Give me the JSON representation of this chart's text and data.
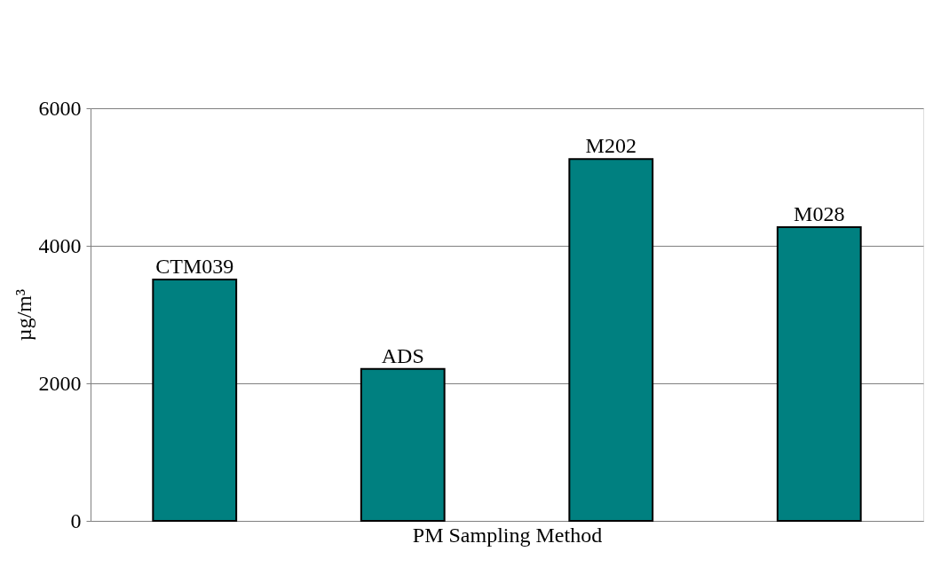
{
  "chart_data": {
    "type": "bar",
    "xlabel": "PM Sampling Method",
    "ylabel": "µg/m³",
    "categories": [
      "CTM039",
      "ADS",
      "M202",
      "M028"
    ],
    "values": [
      3510,
      2210,
      5260,
      4270
    ],
    "color": "#008080",
    "ylim": [
      0,
      6000
    ],
    "yticks": [
      0,
      2000,
      4000,
      6000
    ],
    "grid": "y",
    "tick_labels": "y"
  }
}
